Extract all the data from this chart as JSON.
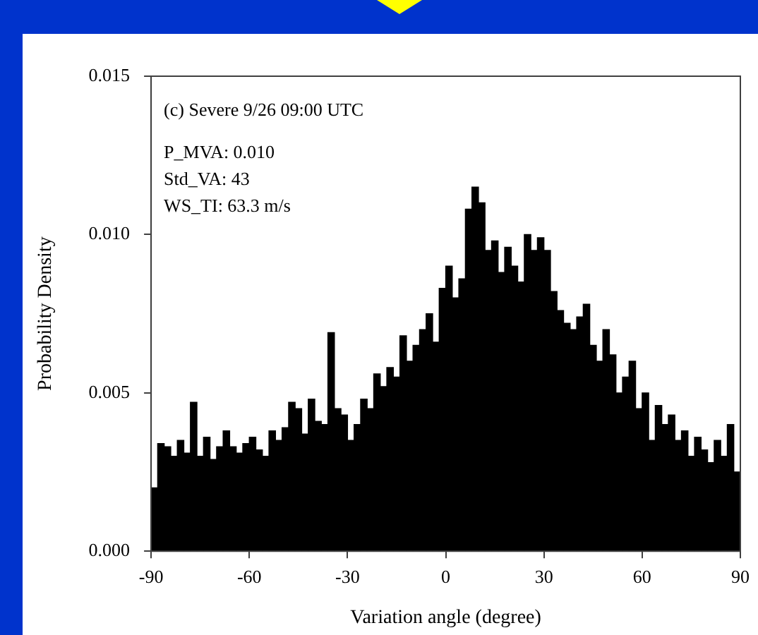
{
  "chart_data": {
    "type": "histogram",
    "xlabel": "Variation angle (degree)",
    "ylabel": "Probability Density",
    "annotations": [
      "(c) Severe 9/26 09:00 UTC",
      "P_MVA: 0.010",
      "Std_VA: 43",
      "WS_TI: 63.3 m/s"
    ],
    "bins": [
      -90,
      -88,
      -86,
      -84,
      -82,
      -80,
      -78,
      -76,
      -74,
      -72,
      -70,
      -68,
      -66,
      -64,
      -62,
      -60,
      -58,
      -56,
      -54,
      -52,
      -50,
      -48,
      -46,
      -44,
      -42,
      -40,
      -38,
      -36,
      -34,
      -32,
      -30,
      -28,
      -26,
      -24,
      -22,
      -20,
      -18,
      -16,
      -14,
      -12,
      -10,
      -8,
      -6,
      -4,
      -2,
      0,
      2,
      4,
      6,
      8,
      10,
      12,
      14,
      16,
      18,
      20,
      22,
      24,
      26,
      28,
      30,
      32,
      34,
      36,
      38,
      40,
      42,
      44,
      46,
      48,
      50,
      52,
      54,
      56,
      58,
      60,
      62,
      64,
      66,
      68,
      70,
      72,
      74,
      76,
      78,
      80,
      82,
      84,
      86,
      88,
      90
    ],
    "values": [
      0.002,
      0.0034,
      0.0033,
      0.003,
      0.0035,
      0.0031,
      0.0047,
      0.003,
      0.0036,
      0.0029,
      0.0033,
      0.0038,
      0.0033,
      0.0031,
      0.0034,
      0.0036,
      0.0032,
      0.003,
      0.0038,
      0.0035,
      0.0039,
      0.0047,
      0.0045,
      0.0037,
      0.0048,
      0.0041,
      0.004,
      0.0069,
      0.0045,
      0.0043,
      0.0035,
      0.004,
      0.0048,
      0.0045,
      0.0056,
      0.0052,
      0.0058,
      0.0055,
      0.0068,
      0.006,
      0.0065,
      0.007,
      0.0075,
      0.0066,
      0.0083,
      0.009,
      0.008,
      0.0086,
      0.0108,
      0.0115,
      0.011,
      0.0095,
      0.0098,
      0.0088,
      0.0096,
      0.009,
      0.0085,
      0.01,
      0.0095,
      0.0099,
      0.0095,
      0.0082,
      0.0076,
      0.0072,
      0.007,
      0.0074,
      0.0078,
      0.0065,
      0.006,
      0.007,
      0.0062,
      0.005,
      0.0055,
      0.006,
      0.0045,
      0.005,
      0.0035,
      0.0046,
      0.004,
      0.0043,
      0.0035,
      0.0038,
      0.003,
      0.0036,
      0.0032,
      0.0028,
      0.0035,
      0.003,
      0.004,
      0.0025
    ],
    "color": "#000000",
    "xlim": [
      -90,
      90
    ],
    "xticks": [
      -90,
      -60,
      -30,
      0,
      30,
      60,
      90
    ],
    "ylim": [
      0,
      0.015
    ],
    "yticks": [
      {
        "value": 0,
        "label": "0.000"
      },
      {
        "value": 0.005,
        "label": "0.005"
      },
      {
        "value": 0.01,
        "label": "0.010"
      },
      {
        "value": 0.015,
        "label": "0.015"
      }
    ],
    "grid": false,
    "legend": false
  }
}
